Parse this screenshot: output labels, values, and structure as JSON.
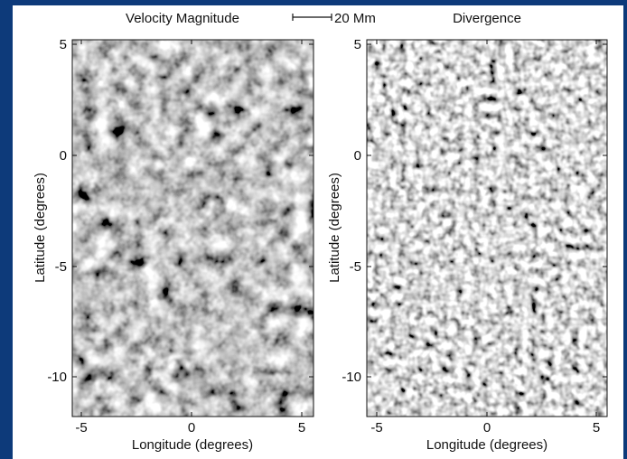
{
  "figure": {
    "panels": [
      {
        "title": "Velocity Magnitude",
        "xlabel": "Longitude (degrees)",
        "ylabel": "Latitude (degrees)",
        "x_ticks": [
          "-5",
          "0",
          "5"
        ],
        "y_ticks": [
          "5",
          "0",
          "-5",
          "-10"
        ],
        "texture": "smooth-cellular"
      },
      {
        "title": "Divergence",
        "xlabel": "Longitude (degrees)",
        "ylabel": "Latitude (degrees)",
        "x_ticks": [
          "-5",
          "0",
          "5"
        ],
        "y_ticks": [
          "5",
          "0",
          "-5",
          "-10"
        ],
        "texture": "granular-speckle"
      }
    ],
    "scale_bar": {
      "label": "20 Mm"
    }
  },
  "colors": {
    "slide_background": "#0d3a7a",
    "figure_background": "#ffffff",
    "ink": "#111111"
  }
}
